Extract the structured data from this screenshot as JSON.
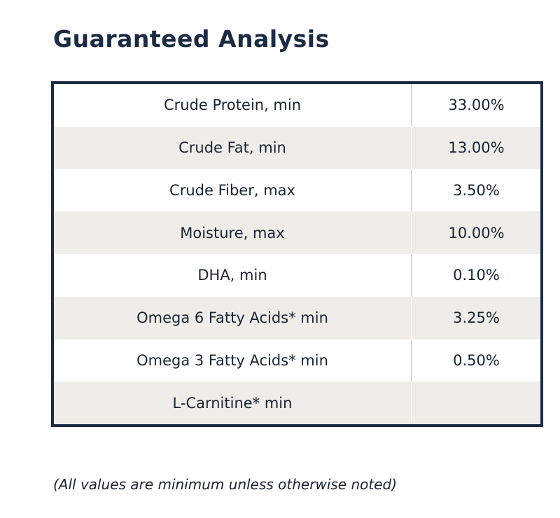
{
  "title": "Guaranteed Analysis",
  "table": {
    "rows": [
      {
        "label": "Crude Protein, min",
        "value": "33.00%"
      },
      {
        "label": "Crude Fat, min",
        "value": "13.00%"
      },
      {
        "label": "Crude Fiber, max",
        "value": "3.50%"
      },
      {
        "label": "Moisture, max",
        "value": "10.00%"
      },
      {
        "label": "DHA, min",
        "value": "0.10%"
      },
      {
        "label": "Omega 6 Fatty Acids* min",
        "value": "3.25%"
      },
      {
        "label": "Omega 3 Fatty Acids* min",
        "value": "0.50%"
      },
      {
        "label": "L-Carnitine* min",
        "value": ""
      }
    ]
  },
  "footnote": "(All values are minimum unless otherwise noted)",
  "colors": {
    "title": "#1c2b44",
    "border": "#1c2b44",
    "alt_row": "#efede9"
  }
}
